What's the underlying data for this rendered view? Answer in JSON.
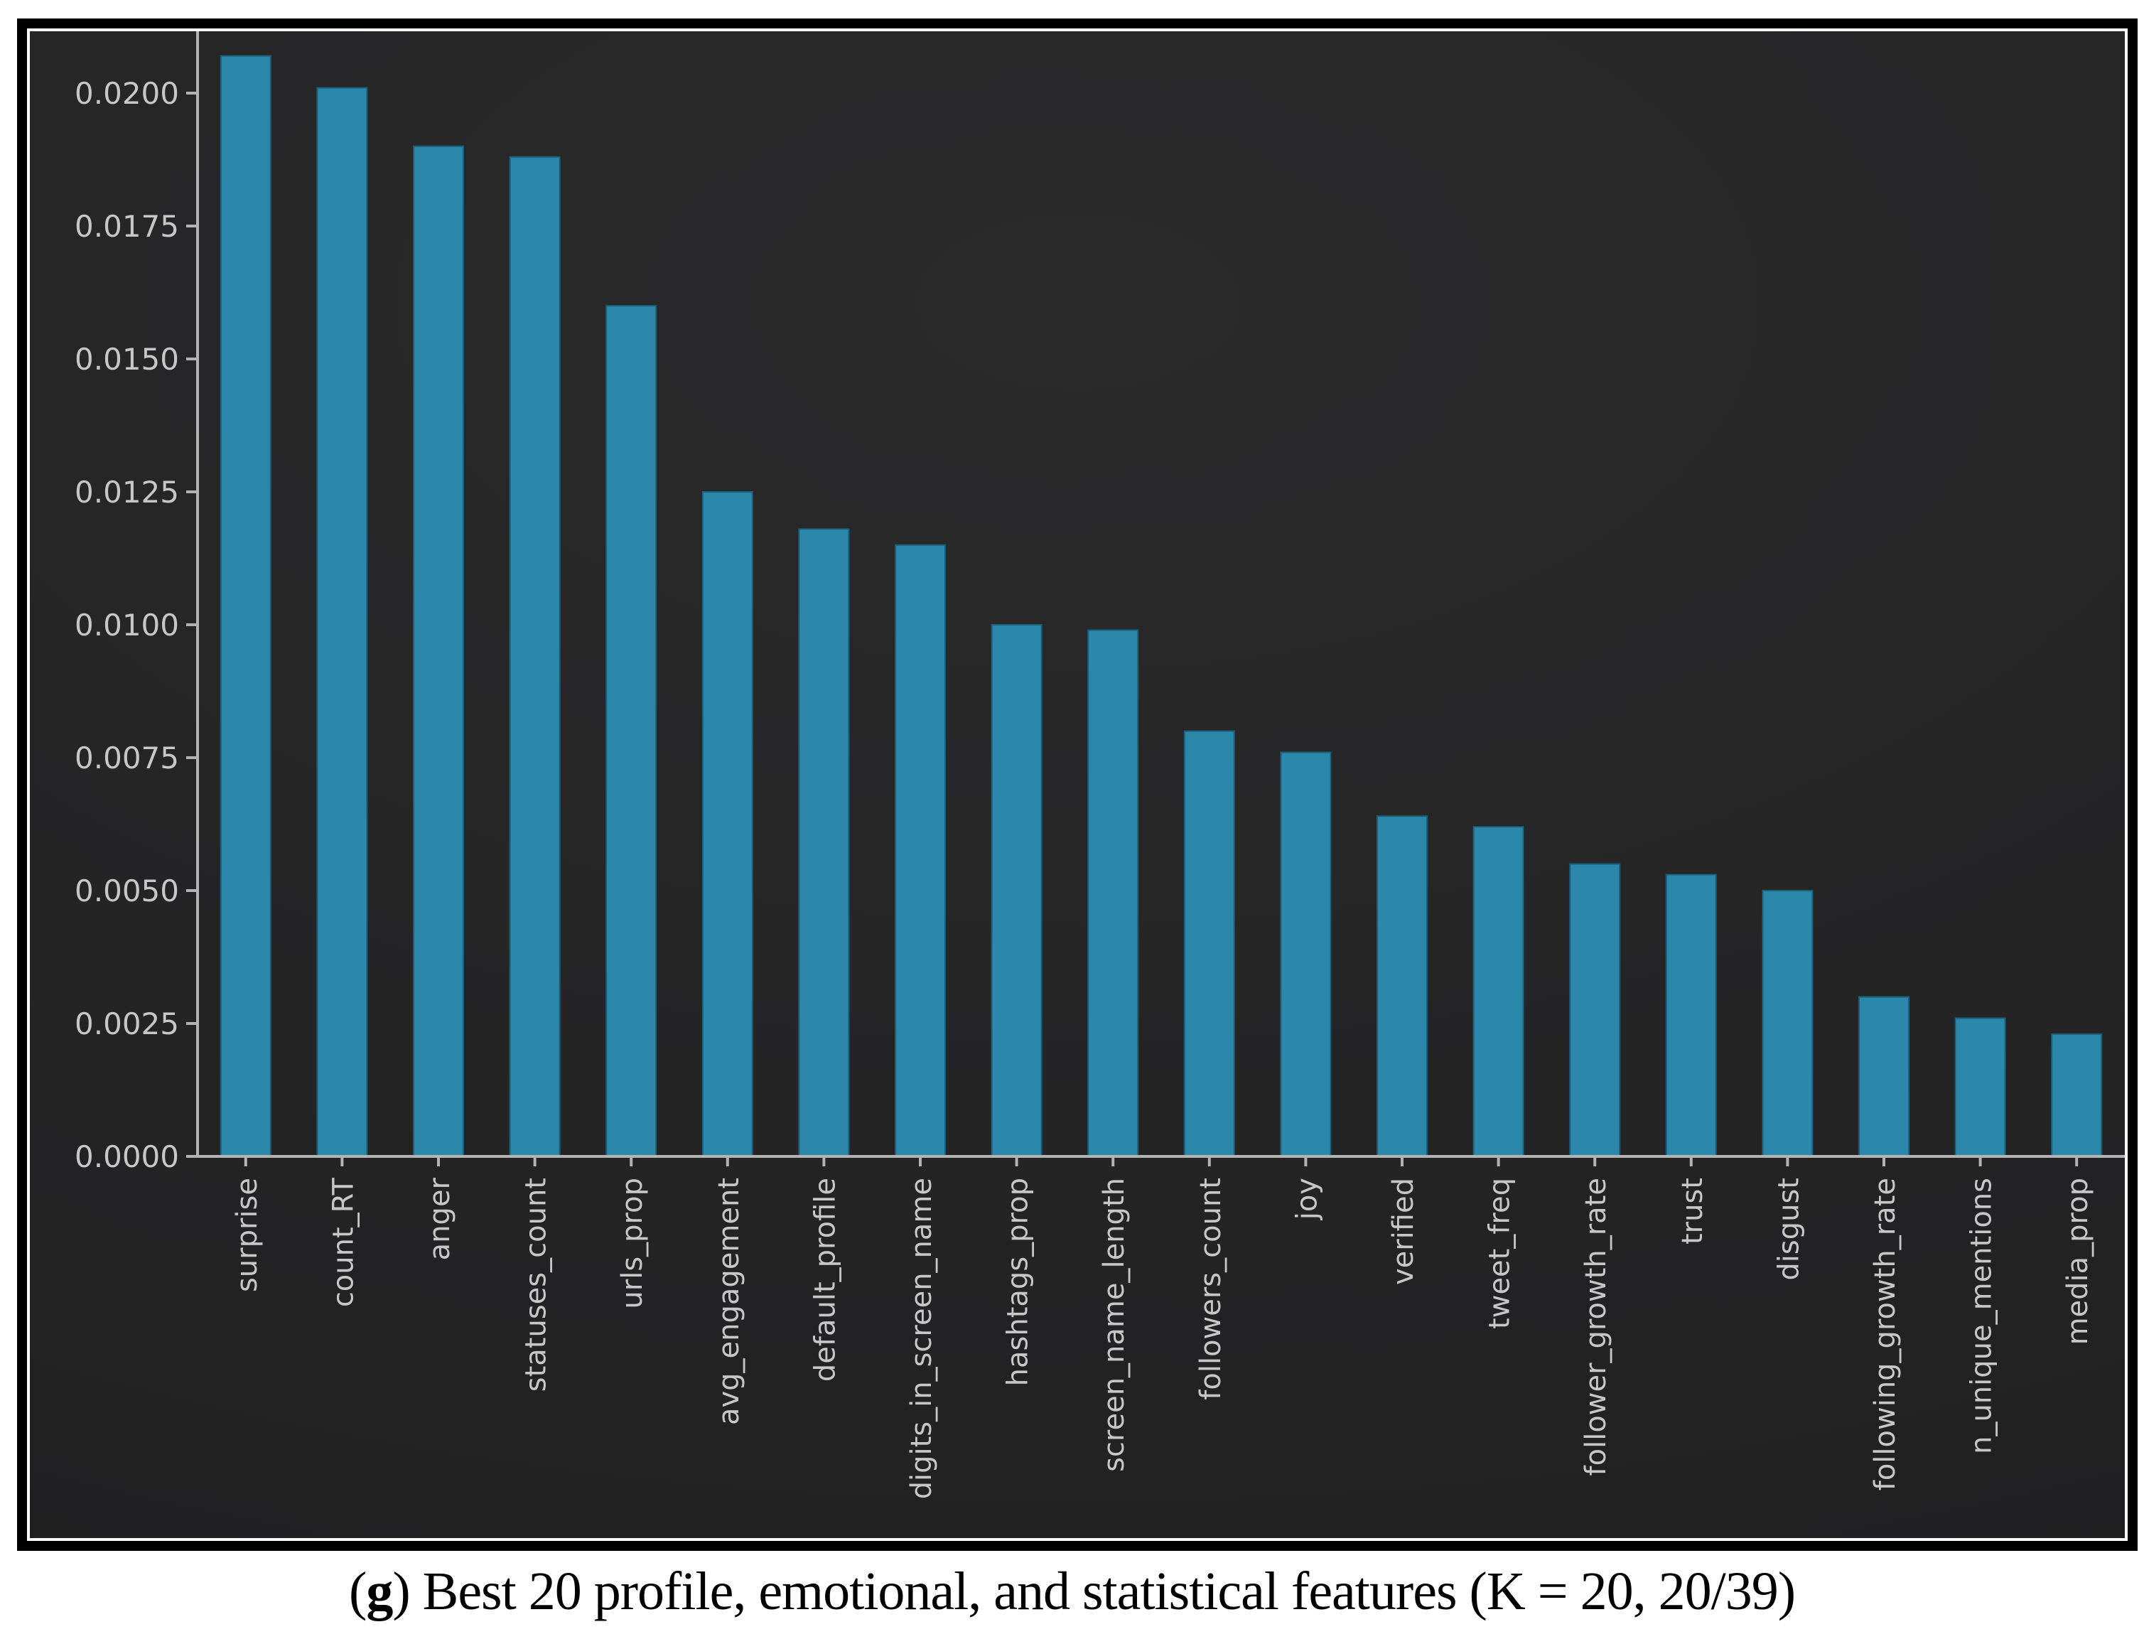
{
  "figure": {
    "caption": {
      "open_paren": "(",
      "letter": "g",
      "rest": ") Best 20 profile, emotional, and statistical features (K = 20, 20/39)"
    }
  },
  "chart_data": {
    "type": "bar",
    "title": "",
    "xlabel": "",
    "ylabel": "",
    "categories": [
      "surprise",
      "count_RT",
      "anger",
      "statuses_count",
      "urls_prop",
      "avg_engagement",
      "default_profile",
      "digits_in_screen_name",
      "hashtags_prop",
      "screen_name_length",
      "followers_count",
      "joy",
      "verified",
      "tweet_freq",
      "follower_growth_rate",
      "trust",
      "disgust",
      "following_growth_rate",
      "n_unique_mentions",
      "media_prop"
    ],
    "values": [
      0.0207,
      0.0201,
      0.019,
      0.0188,
      0.016,
      0.0125,
      0.0118,
      0.0115,
      0.01,
      0.0099,
      0.008,
      0.0076,
      0.0064,
      0.0062,
      0.0055,
      0.0053,
      0.005,
      0.003,
      0.0026,
      0.0023
    ],
    "yticks": [
      0.0,
      0.0025,
      0.005,
      0.0075,
      0.01,
      0.0125,
      0.015,
      0.0175,
      0.02
    ],
    "ytick_labels": [
      "0.0000",
      "0.0025",
      "0.0050",
      "0.0075",
      "0.0100",
      "0.0125",
      "0.0150",
      "0.0175",
      "0.0200"
    ],
    "ylim": [
      0,
      0.0212
    ],
    "grid": false,
    "legend_position": "none",
    "x_label_rotation_degrees": 90,
    "colors": {
      "bar_fill": "#2c88aa",
      "bar_edge": "#1c5f7a",
      "panel_background": "#242425",
      "axis_line": "#b3b3b3",
      "tick_label": "#c7c7c7",
      "frame_border": "#000000",
      "page_background": "#ffffff",
      "caption_text": "#000000"
    }
  }
}
